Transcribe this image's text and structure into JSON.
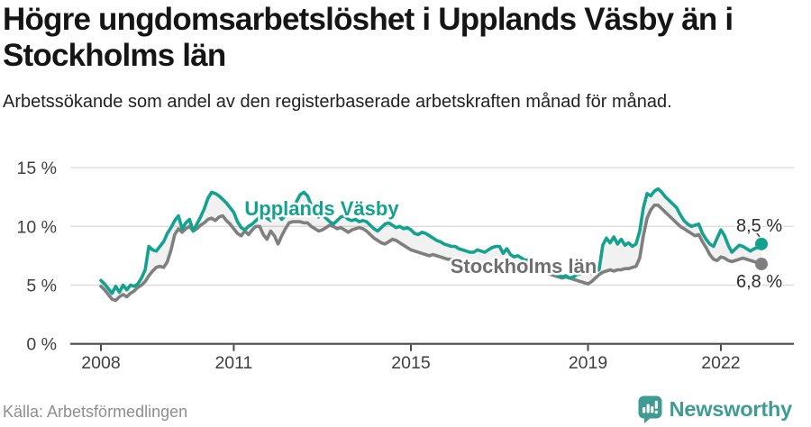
{
  "header": {
    "title": "Högre ungdomsarbetslöshet i Upplands Väsby än i Stockholms län",
    "subtitle": "Arbetssökande som andel av den registerbaserade arbetskraften månad för månad."
  },
  "footer": {
    "source": "Källa: Arbetsförmedlingen",
    "brand": "Newsworthy"
  },
  "colors": {
    "accent_teal": "#13a28e",
    "line_gray": "#7f7f7f",
    "stockholm_label": "#6f6f6f",
    "brand_teal": "#3f9c93",
    "grid": "#dcdcdc",
    "axis": "#4a4a4a",
    "between_fill": "#f1f1f1"
  },
  "chart_data": {
    "type": "line",
    "x_start": "2008-01",
    "x_end": "2022-12",
    "x_base_year": 2008,
    "x_tick_years": [
      2008,
      2011,
      2015,
      2019,
      2022
    ],
    "y_ticks": [
      {
        "value": 0,
        "label": "0 %"
      },
      {
        "value": 5,
        "label": "5 %"
      },
      {
        "value": 10,
        "label": "10 %"
      },
      {
        "value": 15,
        "label": "15 %"
      }
    ],
    "ylim": [
      0,
      15.8
    ],
    "grid": true,
    "legend_position": "inline",
    "series": [
      {
        "name": "Upplands Väsby",
        "color": "#13a28e",
        "end_label": "8,5 %",
        "end_value": 8.5,
        "values": [
          5.4,
          5.1,
          4.7,
          4.3,
          4.9,
          4.4,
          5.0,
          4.6,
          5.0,
          4.9,
          5.1,
          5.6,
          6.3,
          8.3,
          8.0,
          7.9,
          8.3,
          8.7,
          9.4,
          9.9,
          10.5,
          10.9,
          9.8,
          10.3,
          10.6,
          9.6,
          10.2,
          10.8,
          11.5,
          12.4,
          12.9,
          12.8,
          12.6,
          12.3,
          12.0,
          11.6,
          11.2,
          10.4,
          9.9,
          9.7,
          10.0,
          10.2,
          10.5,
          10.8,
          10.9,
          10.7,
          10.5,
          10.8,
          11.0,
          10.6,
          10.9,
          11.2,
          11.6,
          12.1,
          12.7,
          12.9,
          12.6,
          11.8,
          11.1,
          10.8,
          11.0,
          10.7,
          10.4,
          10.2,
          10.5,
          10.8,
          10.9,
          10.6,
          10.5,
          10.6,
          10.4,
          10.5,
          10.4,
          10.1,
          9.8,
          9.6,
          9.9,
          10.2,
          10.3,
          10.1,
          9.9,
          10.0,
          9.8,
          9.9,
          9.7,
          9.4,
          9.3,
          9.5,
          9.4,
          9.2,
          9.0,
          8.8,
          8.7,
          8.5,
          8.4,
          8.3,
          8.3,
          8.1,
          8.0,
          7.9,
          7.8,
          7.8,
          8.0,
          7.9,
          7.8,
          8.0,
          8.2,
          8.3,
          8.3,
          7.7,
          8.1,
          7.6,
          7.4,
          7.5,
          7.3,
          7.1,
          7.2,
          7.0,
          6.9,
          6.8,
          6.6,
          6.4,
          6.2,
          6.0,
          5.8,
          5.7,
          5.8,
          5.6,
          5.7,
          5.9,
          6.0,
          6.2,
          6.1,
          6.0,
          6.2,
          6.3,
          8.4,
          9.0,
          8.6,
          9.1,
          8.5,
          8.9,
          8.4,
          8.6,
          8.3,
          8.5,
          9.6,
          11.6,
          12.8,
          12.6,
          13.0,
          13.2,
          12.9,
          12.5,
          12.2,
          11.9,
          11.6,
          11.0,
          10.5,
          10.2,
          10.0,
          10.1,
          10.2,
          9.4,
          8.9,
          8.5,
          8.3,
          9.0,
          9.7,
          9.2,
          8.4,
          7.8,
          8.1,
          8.4,
          8.3,
          8.1,
          7.9,
          8.1,
          8.2,
          8.5
        ]
      },
      {
        "name": "Stockholms län",
        "color": "#7f7f7f",
        "end_label": "6,8 %",
        "end_value": 6.8,
        "values": [
          4.9,
          4.6,
          4.2,
          3.8,
          3.7,
          4.0,
          4.2,
          4.0,
          4.3,
          4.5,
          4.8,
          5.0,
          5.3,
          5.8,
          6.2,
          6.5,
          6.6,
          6.5,
          7.0,
          8.0,
          9.3,
          9.8,
          9.5,
          9.8,
          10.0,
          9.6,
          9.8,
          10.1,
          10.3,
          10.6,
          10.7,
          10.5,
          10.8,
          10.9,
          10.5,
          10.2,
          9.8,
          9.4,
          9.2,
          9.6,
          9.3,
          9.7,
          10.0,
          10.0,
          9.3,
          8.9,
          9.6,
          9.2,
          8.5,
          9.2,
          9.8,
          10.3,
          10.4,
          10.4,
          10.4,
          10.3,
          10.3,
          10.0,
          9.8,
          9.6,
          9.7,
          9.9,
          10.1,
          10.0,
          9.8,
          9.9,
          9.7,
          9.5,
          9.7,
          9.8,
          9.9,
          9.8,
          9.6,
          9.3,
          9.0,
          8.8,
          8.6,
          8.5,
          8.7,
          8.9,
          8.8,
          8.6,
          8.4,
          8.2,
          8.0,
          7.9,
          7.8,
          7.7,
          7.6,
          7.5,
          7.6,
          7.5,
          7.4,
          7.3,
          7.2,
          7.2,
          7.1,
          7.0,
          7.0,
          6.9,
          6.9,
          6.8,
          6.9,
          6.8,
          6.8,
          6.7,
          6.7,
          6.7,
          6.7,
          6.6,
          6.6,
          6.5,
          6.5,
          6.6,
          6.5,
          6.4,
          6.4,
          6.3,
          6.3,
          6.2,
          6.1,
          6.0,
          5.9,
          5.8,
          5.7,
          5.6,
          5.7,
          5.6,
          5.5,
          5.4,
          5.3,
          5.2,
          5.1,
          5.3,
          5.6,
          5.9,
          6.1,
          6.2,
          6.3,
          6.2,
          6.3,
          6.3,
          6.4,
          6.4,
          6.5,
          6.6,
          7.3,
          9.2,
          10.7,
          11.4,
          11.8,
          11.8,
          11.5,
          11.2,
          10.9,
          10.6,
          10.3,
          10.0,
          9.8,
          9.6,
          9.4,
          9.2,
          9.3,
          8.7,
          8.2,
          7.6,
          7.2,
          7.1,
          7.4,
          7.3,
          7.1,
          7.0,
          7.1,
          7.2,
          7.3,
          7.2,
          7.1,
          7.0,
          6.9,
          6.8
        ]
      }
    ]
  }
}
